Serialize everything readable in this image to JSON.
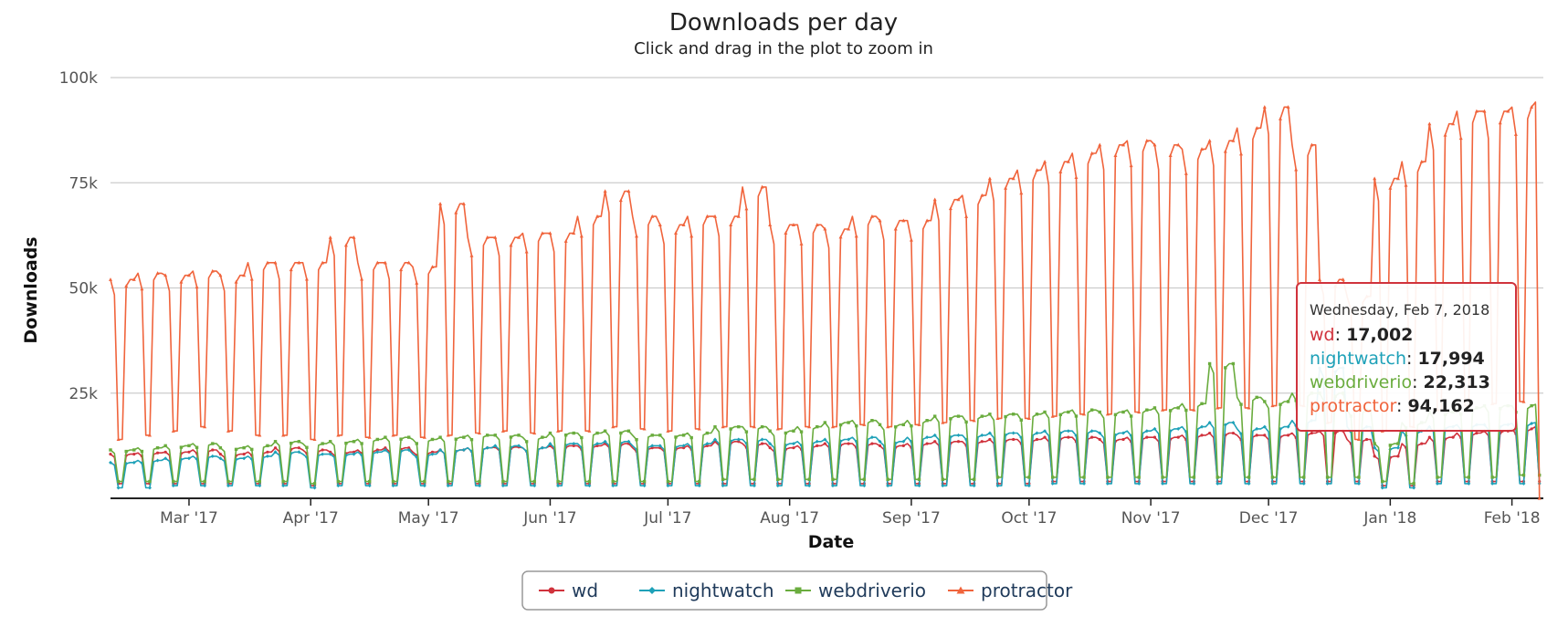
{
  "chart_data": {
    "type": "line",
    "title": "Downloads per day",
    "subtitle": "Click and drag in the plot to zoom in",
    "xlabel": "Date",
    "ylabel": "Downloads",
    "xlim": [
      "2017-02-09",
      "2018-02-09"
    ],
    "ylim": [
      0,
      100000
    ],
    "y_ticks": [
      {
        "value": 25000,
        "label": "25k"
      },
      {
        "value": 50000,
        "label": "50k"
      },
      {
        "value": 75000,
        "label": "75k"
      },
      {
        "value": 100000,
        "label": "100k"
      }
    ],
    "x_ticks": [
      {
        "date": "2017-03-01",
        "label": "Mar '17"
      },
      {
        "date": "2017-04-01",
        "label": "Apr '17"
      },
      {
        "date": "2017-05-01",
        "label": "May '17"
      },
      {
        "date": "2017-06-01",
        "label": "Jun '17"
      },
      {
        "date": "2017-07-01",
        "label": "Jul '17"
      },
      {
        "date": "2017-08-01",
        "label": "Aug '17"
      },
      {
        "date": "2017-09-01",
        "label": "Sep '17"
      },
      {
        "date": "2017-10-01",
        "label": "Oct '17"
      },
      {
        "date": "2017-11-01",
        "label": "Nov '17"
      },
      {
        "date": "2017-12-01",
        "label": "Dec '17"
      },
      {
        "date": "2018-01-01",
        "label": "Jan '18"
      },
      {
        "date": "2018-02-01",
        "label": "Feb '18"
      }
    ],
    "grid": true,
    "legend_position": "bottom-center",
    "series": [
      {
        "name": "wd",
        "color": "#d0323c",
        "marker": "circle",
        "weekly_dates": [
          "2017-02-09",
          "2017-02-16",
          "2017-02-23",
          "2017-03-02",
          "2017-03-09",
          "2017-03-16",
          "2017-03-23",
          "2017-03-30",
          "2017-04-06",
          "2017-04-13",
          "2017-04-20",
          "2017-04-27",
          "2017-05-04",
          "2017-05-11",
          "2017-05-18",
          "2017-05-25",
          "2017-06-01",
          "2017-06-08",
          "2017-06-15",
          "2017-06-22",
          "2017-06-29",
          "2017-07-06",
          "2017-07-13",
          "2017-07-20",
          "2017-07-27",
          "2017-08-03",
          "2017-08-10",
          "2017-08-17",
          "2017-08-24",
          "2017-08-31",
          "2017-09-07",
          "2017-09-14",
          "2017-09-21",
          "2017-09-28",
          "2017-10-05",
          "2017-10-12",
          "2017-10-19",
          "2017-10-26",
          "2017-11-02",
          "2017-11-09",
          "2017-11-16",
          "2017-11-23",
          "2017-11-30",
          "2017-12-07",
          "2017-12-14",
          "2017-12-21",
          "2017-12-28",
          "2018-01-04",
          "2018-01-11",
          "2018-01-18",
          "2018-01-25",
          "2018-02-01",
          "2018-02-07"
        ],
        "weekday_peak": [
          10500,
          10800,
          11000,
          11500,
          10500,
          11000,
          12000,
          11500,
          11000,
          11500,
          12000,
          11000,
          11500,
          12000,
          12200,
          12000,
          12500,
          12500,
          13000,
          12000,
          12000,
          12500,
          13500,
          13000,
          12000,
          12500,
          13000,
          13000,
          12500,
          13000,
          13500,
          13500,
          14000,
          14000,
          14500,
          14500,
          14000,
          14500,
          14500,
          15000,
          15500,
          15000,
          15000,
          15500,
          16000,
          14000,
          10000,
          13000,
          14500,
          15500,
          16000,
          16500,
          17002
        ],
        "weekend_low": [
          3500,
          3500,
          3500,
          3500,
          3500,
          3500,
          3500,
          3000,
          3500,
          3500,
          3500,
          3500,
          3500,
          3500,
          3500,
          3500,
          3500,
          3500,
          3500,
          3500,
          3500,
          3500,
          3500,
          3500,
          3500,
          3500,
          3500,
          3500,
          3500,
          3500,
          3500,
          3500,
          3500,
          3500,
          4000,
          4000,
          4000,
          4000,
          4000,
          4000,
          4000,
          4000,
          4000,
          4000,
          4000,
          4000,
          3000,
          3000,
          4000,
          4000,
          4000,
          4000,
          4000
        ]
      },
      {
        "name": "nightwatch",
        "color": "#1ea1b8",
        "marker": "diamond",
        "weekly_dates": [
          "2017-02-09",
          "2017-02-16",
          "2017-02-23",
          "2017-03-02",
          "2017-03-09",
          "2017-03-16",
          "2017-03-23",
          "2017-03-30",
          "2017-04-06",
          "2017-04-13",
          "2017-04-20",
          "2017-04-27",
          "2017-05-04",
          "2017-05-11",
          "2017-05-18",
          "2017-05-25",
          "2017-06-01",
          "2017-06-08",
          "2017-06-15",
          "2017-06-22",
          "2017-06-29",
          "2017-07-06",
          "2017-07-13",
          "2017-07-20",
          "2017-07-27",
          "2017-08-03",
          "2017-08-10",
          "2017-08-17",
          "2017-08-24",
          "2017-08-31",
          "2017-09-07",
          "2017-09-14",
          "2017-09-21",
          "2017-09-28",
          "2017-10-05",
          "2017-10-12",
          "2017-10-19",
          "2017-10-26",
          "2017-11-02",
          "2017-11-09",
          "2017-11-16",
          "2017-11-23",
          "2017-11-30",
          "2017-12-07",
          "2017-12-14",
          "2017-12-21",
          "2017-12-28",
          "2018-01-04",
          "2018-01-11",
          "2018-01-18",
          "2018-01-25",
          "2018-02-01",
          "2018-02-07"
        ],
        "weekday_peak": [
          8500,
          9000,
          9500,
          10000,
          9500,
          10000,
          11000,
          10500,
          10500,
          11000,
          11500,
          10500,
          11500,
          12000,
          12500,
          12000,
          13000,
          13000,
          13500,
          12500,
          12500,
          13000,
          14000,
          14000,
          13000,
          13500,
          14000,
          14500,
          13500,
          14500,
          15000,
          15000,
          15500,
          15500,
          16000,
          16000,
          15500,
          16000,
          16500,
          17000,
          18000,
          16500,
          17000,
          18500,
          31000,
          17000,
          12000,
          16000,
          17000,
          17500,
          17500,
          17800,
          17994
        ],
        "weekend_low": [
          2500,
          2500,
          3000,
          3000,
          3000,
          3000,
          3000,
          2500,
          3000,
          3000,
          3000,
          3000,
          3000,
          3000,
          3000,
          3000,
          3000,
          3000,
          3000,
          3000,
          3000,
          3000,
          3000,
          3000,
          3000,
          3000,
          3000,
          3000,
          3000,
          3000,
          3000,
          3000,
          3000,
          3000,
          3500,
          3500,
          3500,
          3500,
          3500,
          3500,
          3500,
          3500,
          3500,
          3500,
          3500,
          3500,
          2500,
          2500,
          3500,
          3500,
          3500,
          3500,
          3500
        ]
      },
      {
        "name": "webdriverio",
        "color": "#6aac3e",
        "marker": "square",
        "weekly_dates": [
          "2017-02-09",
          "2017-02-16",
          "2017-02-23",
          "2017-03-02",
          "2017-03-09",
          "2017-03-16",
          "2017-03-23",
          "2017-03-30",
          "2017-04-06",
          "2017-04-13",
          "2017-04-20",
          "2017-04-27",
          "2017-05-04",
          "2017-05-11",
          "2017-05-18",
          "2017-05-25",
          "2017-06-01",
          "2017-06-08",
          "2017-06-15",
          "2017-06-22",
          "2017-06-29",
          "2017-07-06",
          "2017-07-13",
          "2017-07-20",
          "2017-07-27",
          "2017-08-03",
          "2017-08-10",
          "2017-08-17",
          "2017-08-24",
          "2017-08-31",
          "2017-09-07",
          "2017-09-14",
          "2017-09-21",
          "2017-09-28",
          "2017-10-05",
          "2017-10-12",
          "2017-10-19",
          "2017-10-26",
          "2017-11-02",
          "2017-11-09",
          "2017-11-16",
          "2017-11-23",
          "2017-11-30",
          "2017-12-07",
          "2017-12-14",
          "2017-12-21",
          "2017-12-28",
          "2018-01-04",
          "2018-01-11",
          "2018-01-18",
          "2018-01-25",
          "2018-02-01",
          "2018-02-07"
        ],
        "weekday_peak": [
          11500,
          12000,
          12500,
          13000,
          12000,
          12500,
          13500,
          13000,
          13500,
          14000,
          14500,
          14000,
          14500,
          15000,
          15000,
          14500,
          15500,
          15500,
          16000,
          15000,
          15000,
          15500,
          17000,
          17000,
          16000,
          17000,
          18000,
          18500,
          17500,
          18500,
          19500,
          19500,
          20000,
          20000,
          20500,
          21000,
          20500,
          21000,
          21500,
          22500,
          32000,
          24000,
          23000,
          25000,
          25000,
          21000,
          13000,
          18000,
          20500,
          21500,
          22000,
          22000,
          22313
        ],
        "weekend_low": [
          4000,
          4000,
          4000,
          4000,
          4000,
          4000,
          4000,
          3500,
          4000,
          4000,
          4000,
          4000,
          4000,
          4000,
          4000,
          4000,
          4000,
          4000,
          4000,
          4000,
          4000,
          4000,
          4500,
          4500,
          4500,
          4500,
          4500,
          4500,
          4500,
          4500,
          4500,
          4500,
          5000,
          5000,
          5000,
          5000,
          5000,
          5000,
          5000,
          5000,
          5000,
          5000,
          5000,
          5000,
          5000,
          5000,
          4000,
          3500,
          5000,
          5000,
          5000,
          5500,
          5500
        ]
      },
      {
        "name": "protractor",
        "color": "#f0643c",
        "marker": "triangle",
        "weekly_dates": [
          "2017-02-09",
          "2017-02-16",
          "2017-02-23",
          "2017-03-02",
          "2017-03-09",
          "2017-03-16",
          "2017-03-23",
          "2017-03-30",
          "2017-04-06",
          "2017-04-13",
          "2017-04-20",
          "2017-04-27",
          "2017-05-04",
          "2017-05-11",
          "2017-05-18",
          "2017-05-25",
          "2017-06-01",
          "2017-06-08",
          "2017-06-15",
          "2017-06-22",
          "2017-06-29",
          "2017-07-06",
          "2017-07-13",
          "2017-07-20",
          "2017-07-27",
          "2017-08-03",
          "2017-08-10",
          "2017-08-17",
          "2017-08-24",
          "2017-08-31",
          "2017-09-07",
          "2017-09-14",
          "2017-09-21",
          "2017-09-28",
          "2017-10-05",
          "2017-10-12",
          "2017-10-19",
          "2017-10-26",
          "2017-11-02",
          "2017-11-09",
          "2017-11-16",
          "2017-11-23",
          "2017-11-30",
          "2017-12-07",
          "2017-12-14",
          "2017-12-21",
          "2017-12-28",
          "2018-01-04",
          "2018-01-11",
          "2018-01-18",
          "2018-01-25",
          "2018-02-01",
          "2018-02-07"
        ],
        "weekday_peak": [
          52000,
          53500,
          53000,
          54000,
          53000,
          56000,
          56000,
          56000,
          62000,
          56000,
          56000,
          55000,
          70000,
          62000,
          62000,
          63000,
          63000,
          67000,
          73000,
          67000,
          65000,
          67000,
          67000,
          74000,
          65000,
          65000,
          64000,
          67000,
          66000,
          66000,
          71000,
          72000,
          76000,
          78000,
          80000,
          82000,
          84000,
          85000,
          84000,
          83000,
          85000,
          88000,
          93000,
          84000,
          52000,
          48000,
          76000,
          80000,
          89000,
          92000,
          92000,
          93000,
          94162
        ],
        "weekend_low": [
          14000,
          15000,
          16000,
          17000,
          16000,
          15000,
          15000,
          14000,
          15000,
          14500,
          15000,
          14500,
          15000,
          15500,
          16000,
          15500,
          16000,
          16000,
          17000,
          16500,
          16000,
          16500,
          17000,
          17000,
          16500,
          17000,
          17000,
          17500,
          17000,
          17500,
          18000,
          18500,
          19000,
          19000,
          19500,
          20000,
          20000,
          20500,
          21000,
          21000,
          21500,
          21500,
          22000,
          22000,
          18000,
          14000,
          16000,
          17000,
          21000,
          22000,
          22500,
          23000,
          0
        ]
      }
    ]
  },
  "tooltip": {
    "date": "Wednesday, Feb 7, 2018",
    "rows": [
      {
        "name": "wd",
        "value": "17,002",
        "color": "#d0323c"
      },
      {
        "name": "nightwatch",
        "value": "17,994",
        "color": "#1ea1b8"
      },
      {
        "name": "webdriverio",
        "value": "22,313",
        "color": "#6aac3e"
      },
      {
        "name": "protractor",
        "value": "94,162",
        "color": "#f0643c"
      }
    ],
    "border_color": "#d0323c"
  }
}
